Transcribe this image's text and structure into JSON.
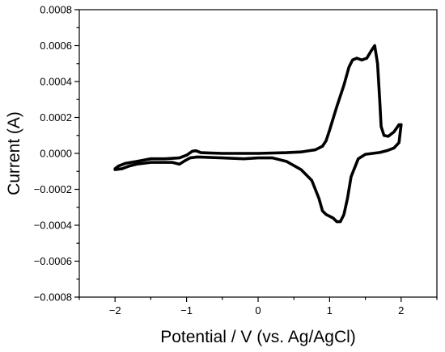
{
  "chart_data": {
    "type": "line",
    "title": "",
    "xlabel": "Potential / V (vs. Ag/AgCl)",
    "ylabel": "Current (A)",
    "xlim": [
      -2.5,
      2.5
    ],
    "ylim": [
      -0.0008,
      0.0008
    ],
    "x_ticks": [
      "-2",
      "-1",
      "0",
      "1",
      "2"
    ],
    "x_tick_values": [
      -2,
      -1,
      0,
      1,
      2
    ],
    "y_ticks": [
      "0.0008",
      "0.0006",
      "0.0004",
      "0.0002",
      "0.0000",
      "-0.0002",
      "-0.0004",
      "-0.0006",
      "-0.0008"
    ],
    "y_tick_values": [
      0.0008,
      0.0006,
      0.0004,
      0.0002,
      0.0,
      -0.0002,
      -0.0004,
      -0.0006,
      -0.0008
    ],
    "grid": false,
    "legend": "none",
    "line_color": "#000000",
    "series": [
      {
        "points": [
          [
            -2.0,
            -9e-05
          ],
          [
            -1.9,
            -8.5e-05
          ],
          [
            -1.8,
            -7e-05
          ],
          [
            -1.7,
            -6e-05
          ],
          [
            -1.6,
            -5.5e-05
          ],
          [
            -1.5,
            -5e-05
          ],
          [
            -1.35,
            -5e-05
          ],
          [
            -1.2,
            -5e-05
          ],
          [
            -1.1,
            -6e-05
          ],
          [
            -1.02,
            -4e-05
          ],
          [
            -0.95,
            -2.5e-05
          ],
          [
            -0.85,
            -2e-05
          ],
          [
            -0.5,
            -2.5e-05
          ],
          [
            -0.2,
            -3e-05
          ],
          [
            0.0,
            -2.5e-05
          ],
          [
            0.2,
            -2.5e-05
          ],
          [
            0.4,
            -4.5e-05
          ],
          [
            0.6,
            -9e-05
          ],
          [
            0.75,
            -0.00015
          ],
          [
            0.85,
            -0.00025
          ],
          [
            0.9,
            -0.00032
          ],
          [
            0.95,
            -0.00034
          ],
          [
            1.0,
            -0.00035
          ],
          [
            1.05,
            -0.00036
          ],
          [
            1.1,
            -0.00038
          ],
          [
            1.15,
            -0.00038
          ],
          [
            1.2,
            -0.00034
          ],
          [
            1.25,
            -0.00025
          ],
          [
            1.3,
            -0.00013
          ],
          [
            1.4,
            -3e-05
          ],
          [
            1.5,
            -5e-06
          ],
          [
            1.6,
            0.0
          ],
          [
            1.7,
            5e-06
          ],
          [
            1.8,
            1.5e-05
          ],
          [
            1.9,
            3e-05
          ],
          [
            1.97,
            6e-05
          ],
          [
            2.0,
            0.00016
          ],
          [
            1.97,
            0.00016
          ],
          [
            1.9,
            0.00012
          ],
          [
            1.82,
            9.5e-05
          ],
          [
            1.76,
            0.0001
          ],
          [
            1.72,
            0.00015
          ],
          [
            1.7,
            0.0003
          ],
          [
            1.67,
            0.0005
          ],
          [
            1.63,
            0.0006
          ],
          [
            1.58,
            0.00057
          ],
          [
            1.52,
            0.00053
          ],
          [
            1.45,
            0.00052
          ],
          [
            1.38,
            0.00053
          ],
          [
            1.32,
            0.00052
          ],
          [
            1.27,
            0.00048
          ],
          [
            1.2,
            0.00038
          ],
          [
            1.1,
            0.00026
          ],
          [
            1.0,
            0.00013
          ],
          [
            0.95,
            7e-05
          ],
          [
            0.9,
            4e-05
          ],
          [
            0.8,
            2e-05
          ],
          [
            0.6,
            8e-06
          ],
          [
            0.4,
            4e-06
          ],
          [
            0.0,
            0.0
          ],
          [
            -0.5,
            0.0
          ],
          [
            -0.8,
            4e-06
          ],
          [
            -0.87,
            1.5e-05
          ],
          [
            -0.92,
            1.2e-05
          ],
          [
            -1.0,
            -1e-05
          ],
          [
            -1.1,
            -2.5e-05
          ],
          [
            -1.3,
            -3e-05
          ],
          [
            -1.5,
            -3e-05
          ],
          [
            -1.7,
            -4.5e-05
          ],
          [
            -1.85,
            -5.5e-05
          ],
          [
            -1.95,
            -7e-05
          ],
          [
            -2.0,
            -8.5e-05
          ],
          [
            -2.0,
            -9e-05
          ]
        ]
      }
    ]
  }
}
